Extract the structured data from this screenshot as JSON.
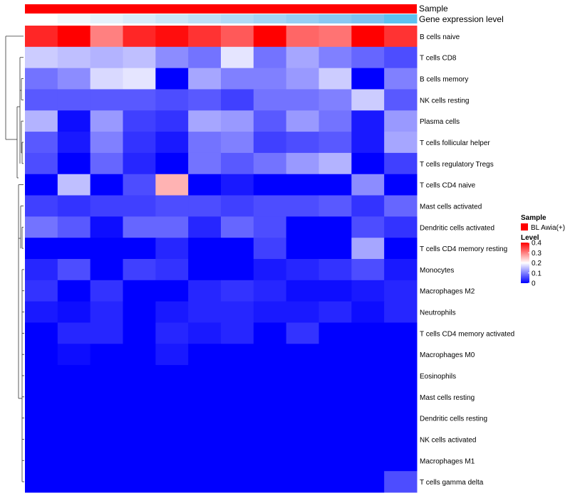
{
  "chart_data": {
    "type": "heatmap",
    "top_annotations": [
      {
        "label": "Sample",
        "color": "#ff0000"
      },
      {
        "label": "Gene expression level",
        "colors": [
          "#ffffff",
          "#f2f8fc",
          "#e5f2fb",
          "#d8ecfa",
          "#cbe6f8",
          "#bee0f7",
          "#b1daf6",
          "#a4d4f5",
          "#97cef3",
          "#8ac8f2",
          "#7dc2f1",
          "#5dc2f0"
        ]
      }
    ],
    "rows": [
      "B cells naive",
      "T cells CD8",
      "B cells memory",
      "NK cells resting",
      "Plasma cells",
      "T cells follicular helper",
      "T cells regulatory  Tregs",
      "T cells CD4 naive",
      "Mast cells activated",
      "Dendritic cells activated",
      "T cells CD4 memory resting",
      "Monocytes",
      "Macrophages M2",
      "Neutrophils",
      "T cells CD4 memory activated",
      "Macrophages M0",
      "Eosinophils",
      "Mast cells resting",
      "Dendritic cells resting",
      "NK cells activated",
      "Macrophages M1",
      "T cells gamma delta"
    ],
    "values": [
      [
        0.37,
        0.4,
        0.3,
        0.37,
        0.39,
        0.36,
        0.33,
        0.4,
        0.32,
        0.31,
        0.4,
        0.36
      ],
      [
        0.16,
        0.15,
        0.14,
        0.15,
        0.11,
        0.09,
        0.18,
        0.09,
        0.13,
        0.1,
        0.08,
        0.06
      ],
      [
        0.09,
        0.11,
        0.17,
        0.18,
        0.0,
        0.13,
        0.1,
        0.1,
        0.12,
        0.16,
        0.0,
        0.1
      ],
      [
        0.07,
        0.07,
        0.07,
        0.07,
        0.06,
        0.07,
        0.05,
        0.09,
        0.09,
        0.1,
        0.16,
        0.07
      ],
      [
        0.14,
        0.01,
        0.12,
        0.05,
        0.04,
        0.13,
        0.12,
        0.07,
        0.12,
        0.09,
        0.02,
        0.12
      ],
      [
        0.07,
        0.02,
        0.1,
        0.04,
        0.02,
        0.09,
        0.1,
        0.05,
        0.06,
        0.07,
        0.02,
        0.13
      ],
      [
        0.06,
        0.0,
        0.08,
        0.03,
        0.0,
        0.09,
        0.07,
        0.09,
        0.12,
        0.14,
        0.0,
        0.05
      ],
      [
        0.0,
        0.15,
        0.0,
        0.06,
        0.26,
        0.0,
        0.02,
        0.0,
        0.0,
        0.0,
        0.11,
        0.0
      ],
      [
        0.05,
        0.04,
        0.05,
        0.05,
        0.06,
        0.06,
        0.05,
        0.06,
        0.06,
        0.07,
        0.04,
        0.08
      ],
      [
        0.09,
        0.07,
        0.01,
        0.08,
        0.08,
        0.03,
        0.08,
        0.06,
        0.0,
        0.0,
        0.06,
        0.04
      ],
      [
        0.0,
        0.0,
        0.0,
        0.0,
        0.03,
        0.0,
        0.0,
        0.05,
        0.0,
        0.0,
        0.13,
        0.0
      ],
      [
        0.03,
        0.06,
        0.0,
        0.05,
        0.04,
        0.0,
        0.0,
        0.02,
        0.03,
        0.04,
        0.06,
        0.02
      ],
      [
        0.04,
        0.0,
        0.04,
        0.0,
        0.0,
        0.03,
        0.04,
        0.03,
        0.01,
        0.01,
        0.02,
        0.03
      ],
      [
        0.02,
        0.01,
        0.03,
        0.0,
        0.02,
        0.03,
        0.03,
        0.02,
        0.02,
        0.03,
        0.01,
        0.03
      ],
      [
        0.0,
        0.03,
        0.03,
        0.0,
        0.03,
        0.02,
        0.03,
        0.0,
        0.04,
        0.0,
        0.0,
        0.0
      ],
      [
        0.0,
        0.01,
        0.0,
        0.0,
        0.02,
        0.0,
        0.0,
        0.0,
        0.0,
        0.0,
        0.0,
        0.0
      ],
      [
        0.0,
        0.0,
        0.0,
        0.0,
        0.0,
        0.0,
        0.0,
        0.0,
        0.0,
        0.0,
        0.0,
        0.0
      ],
      [
        0.0,
        0.0,
        0.0,
        0.0,
        0.0,
        0.0,
        0.0,
        0.0,
        0.0,
        0.0,
        0.0,
        0.0
      ],
      [
        0.0,
        0.0,
        0.0,
        0.0,
        0.0,
        0.0,
        0.0,
        0.0,
        0.0,
        0.0,
        0.0,
        0.0
      ],
      [
        0.0,
        0.0,
        0.0,
        0.0,
        0.0,
        0.0,
        0.0,
        0.0,
        0.0,
        0.0,
        0.0,
        0.0
      ],
      [
        0.0,
        0.0,
        0.0,
        0.0,
        0.0,
        0.0,
        0.0,
        0.0,
        0.0,
        0.0,
        0.0,
        0.0
      ],
      [
        0.0,
        0.0,
        0.0,
        0.0,
        0.0,
        0.0,
        0.0,
        0.0,
        0.0,
        0.0,
        0.0,
        0.06
      ]
    ],
    "color_scale": {
      "stops": [
        {
          "value": 0,
          "color": "#0000ff"
        },
        {
          "value": 0.2,
          "color": "#ffffff"
        },
        {
          "value": 0.4,
          "color": "#ff0000"
        }
      ]
    },
    "legend": {
      "sample_title": "Sample",
      "sample_entry": "BL Awia(+)",
      "sample_color": "#ff0000",
      "level_title": "Level",
      "level_ticks": [
        "0.4",
        "0.3",
        "0.2",
        "0.1",
        "0"
      ],
      "level_tick_values": [
        0.4,
        0.3,
        0.2,
        0.1,
        0
      ]
    },
    "dendrogram": {
      "side": "left"
    }
  }
}
